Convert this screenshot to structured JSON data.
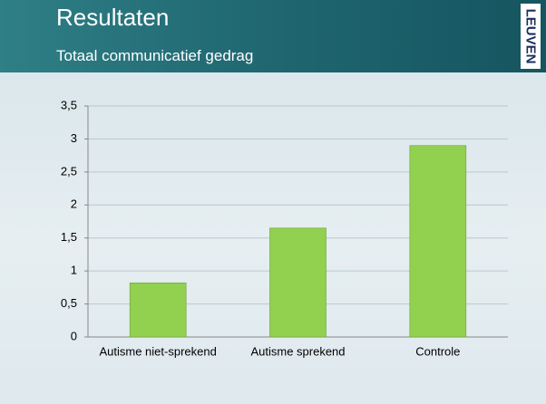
{
  "header": {
    "title": "Resultaten",
    "subtitle": "Totaal communicatief gedrag",
    "logo": "LEUVEN"
  },
  "chart_data": {
    "type": "bar",
    "categories": [
      "Autisme niet-sprekend",
      "Autisme sprekend",
      "Controle"
    ],
    "values": [
      0.82,
      1.65,
      2.9
    ],
    "color": "#92d050",
    "ylim": [
      0,
      3.5
    ],
    "yticks": [
      0,
      {
        "value": 0.5,
        "label": "0,5"
      },
      1,
      {
        "value": 1.5,
        "label": "1,5"
      },
      2,
      {
        "value": 2.5,
        "label": "2,5"
      },
      3,
      {
        "value": 3.5,
        "label": "3,5"
      }
    ],
    "grid": true
  }
}
